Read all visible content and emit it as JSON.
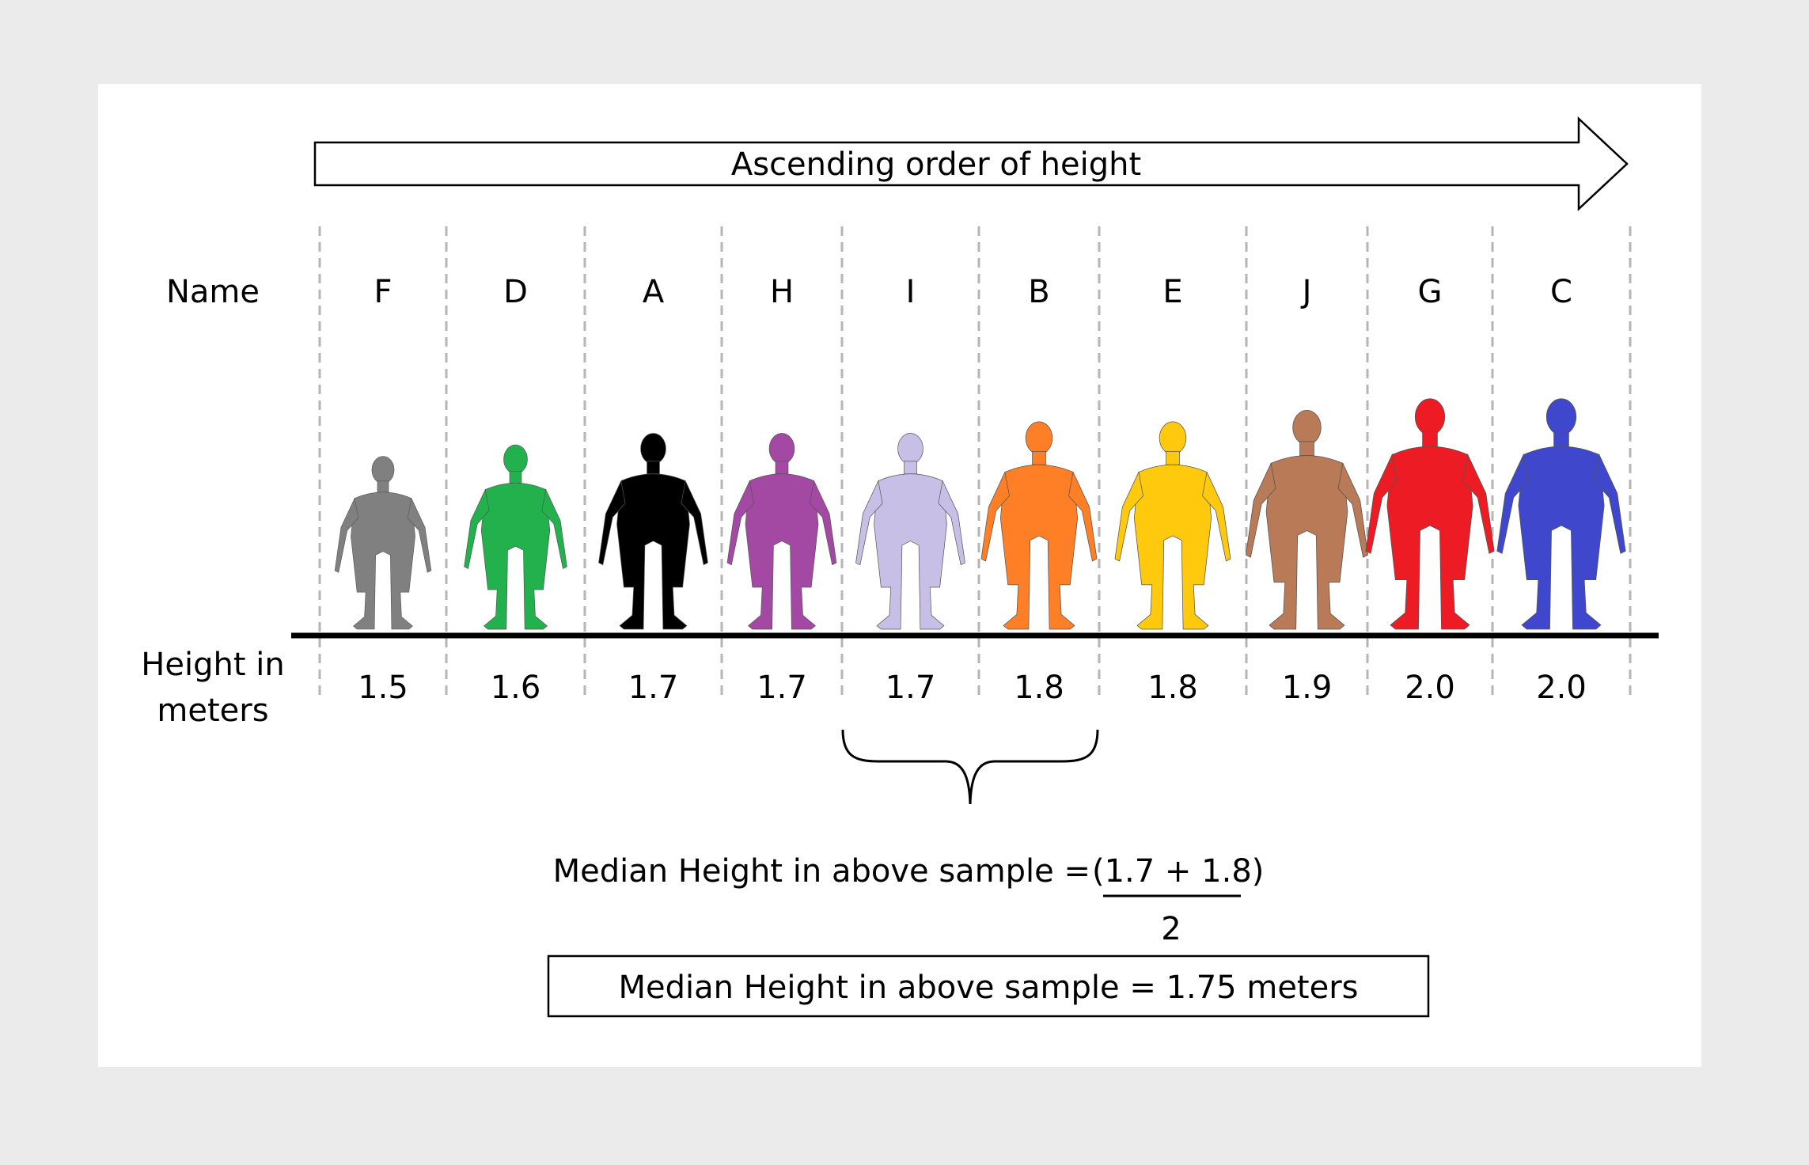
{
  "arrow_label": "Ascending order of height",
  "row_labels": {
    "name": "Name",
    "height_line1": "Height in",
    "height_line2": "meters"
  },
  "people": [
    {
      "name": "F",
      "height": "1.5",
      "color": "#808080"
    },
    {
      "name": "D",
      "height": "1.6",
      "color": "#22b14c"
    },
    {
      "name": "A",
      "height": "1.7",
      "color": "#000000"
    },
    {
      "name": "H",
      "height": "1.7",
      "color": "#a349a4"
    },
    {
      "name": "I",
      "height": "1.7",
      "color": "#c8bfe7"
    },
    {
      "name": "B",
      "height": "1.8",
      "color": "#ff7f27"
    },
    {
      "name": "E",
      "height": "1.8",
      "color": "#ffc90e"
    },
    {
      "name": "J",
      "height": "1.9",
      "color": "#b97a57"
    },
    {
      "name": "G",
      "height": "2.0",
      "color": "#ed1c24"
    },
    {
      "name": "C",
      "height": "2.0",
      "color": "#3f48cc"
    }
  ],
  "formula": {
    "prefix": "Median Height in above sample = ",
    "numerator": "(1.7 + 1.8)",
    "denominator": "2"
  },
  "result": "Median Height in above sample = 1.75 meters"
}
